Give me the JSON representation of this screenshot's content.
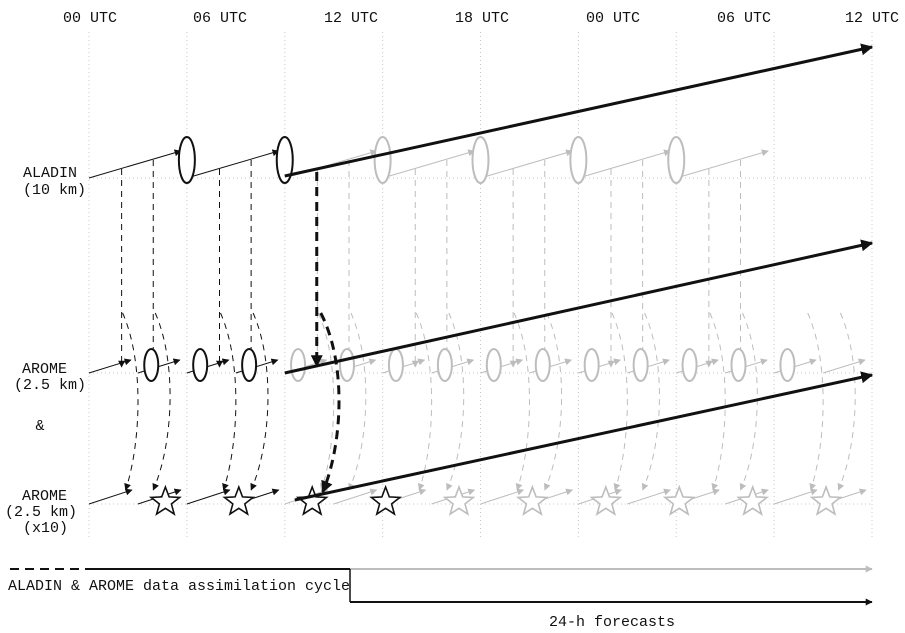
{
  "time_axis": {
    "labels": [
      "00 UTC",
      "06 UTC",
      "12 UTC",
      "18 UTC",
      "00 UTC",
      "06 UTC",
      "12 UTC"
    ]
  },
  "models": [
    {
      "id": "aladin",
      "lines": [
        "ALADIN",
        "(10 km)"
      ]
    },
    {
      "id": "arome",
      "lines": [
        "AROME",
        "(2.5 km)"
      ]
    },
    {
      "id": "ampersand",
      "lines": [
        "&"
      ]
    },
    {
      "id": "arome-ensemble",
      "lines": [
        "AROME",
        "(2.5 km)",
        "(x10)"
      ]
    }
  ],
  "legend": {
    "assimilation": "ALADIN & AROME data assimilation cycle",
    "forecasts": "24-h forecasts"
  },
  "colors": {
    "active": "#111111",
    "future": "#bdbdbd",
    "grid": "#c8c8c8"
  }
}
